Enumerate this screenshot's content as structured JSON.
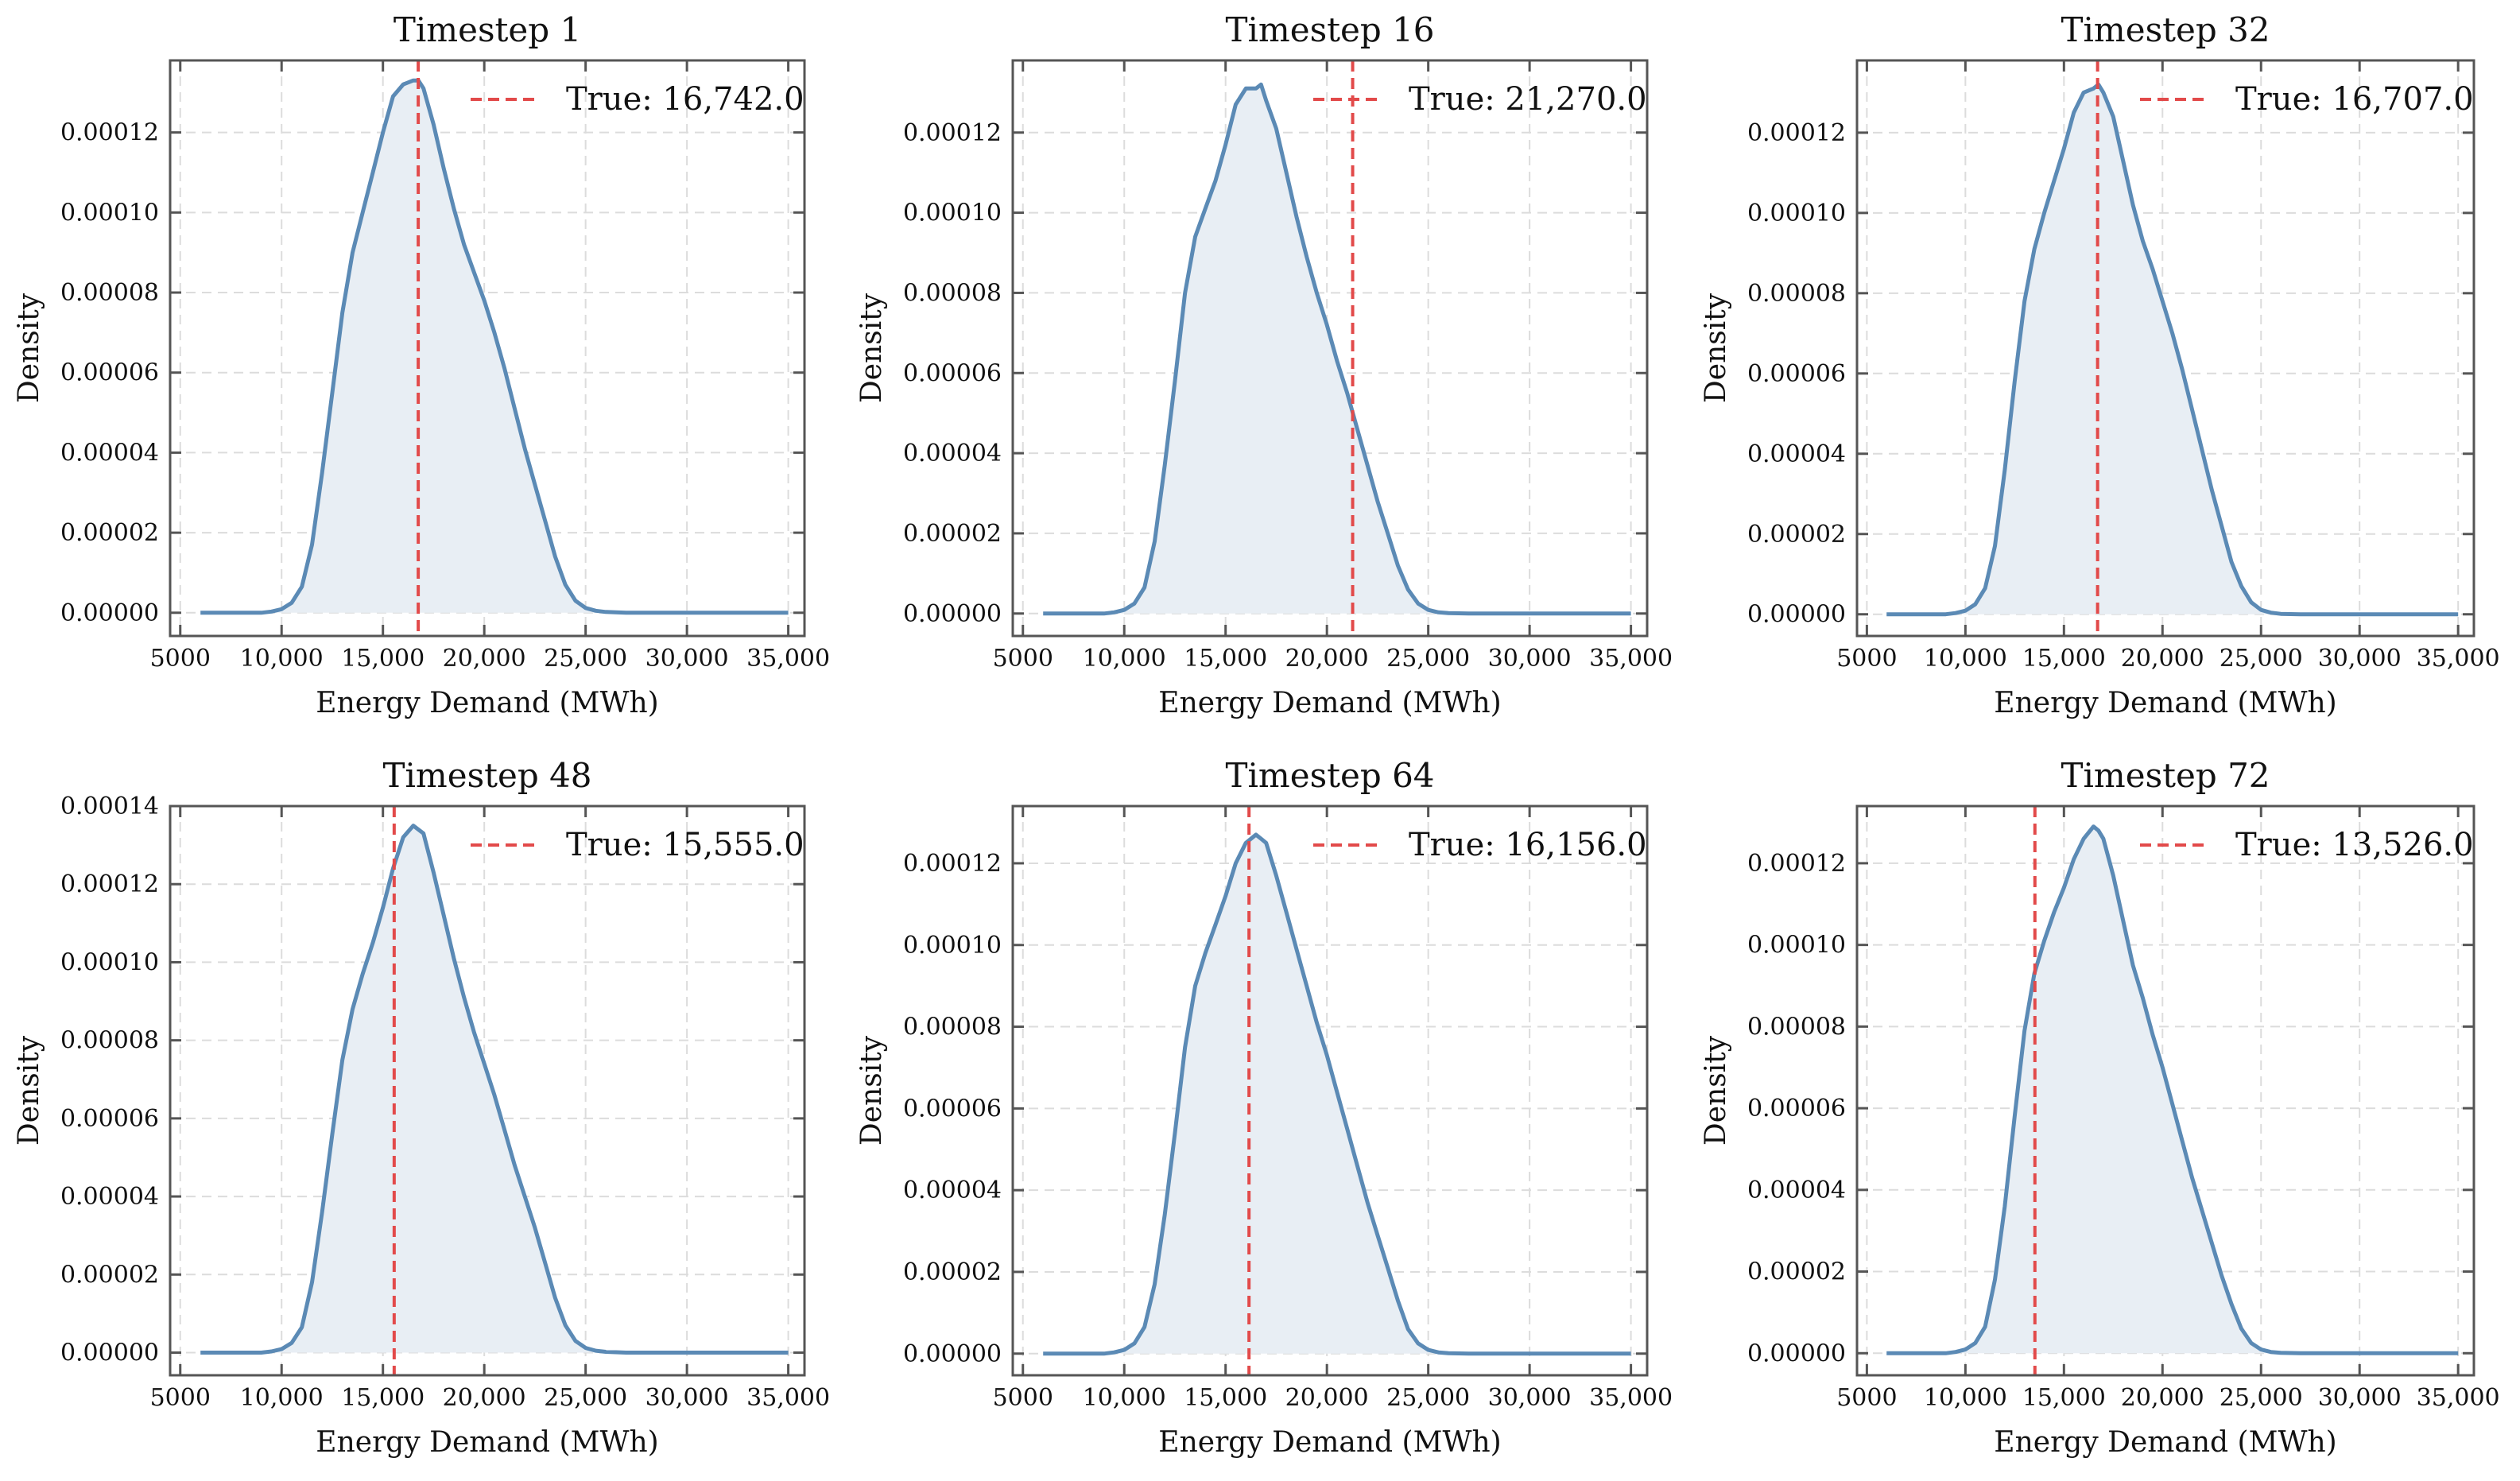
{
  "chart_data": [
    {
      "type": "area",
      "title": "Timestep 1",
      "xlabel": "Energy Demand (MWh)",
      "ylabel": "Density",
      "xlim": [
        4500,
        35800
      ],
      "ylim": [
        -5.8e-06,
        0.000138
      ],
      "xticks": [
        5000,
        10000,
        15000,
        20000,
        25000,
        30000,
        35000
      ],
      "xtick_labels": [
        "5000",
        "10,000",
        "15,000",
        "20,000",
        "25,000",
        "30,000",
        "35,000"
      ],
      "yticks": [
        0,
        2e-05,
        4e-05,
        6e-05,
        8e-05,
        0.0001,
        0.00012
      ],
      "ytick_labels": [
        "0.00000",
        "0.00002",
        "0.00004",
        "0.00006",
        "0.00008",
        "0.00010",
        "0.00012"
      ],
      "grid": true,
      "legend_position": "top-right",
      "true_value": 16742,
      "true_label": "True: 16,742.0",
      "x": [
        6000,
        9000,
        9500,
        10000,
        10500,
        11000,
        11500,
        12000,
        12500,
        13000,
        13500,
        14000,
        14500,
        15000,
        15500,
        16000,
        16500,
        16750,
        17000,
        17500,
        18000,
        18500,
        19000,
        19500,
        20000,
        20500,
        21000,
        21500,
        22000,
        22500,
        23000,
        23500,
        24000,
        24500,
        25000,
        25500,
        26000,
        27000,
        30000,
        35000
      ],
      "y": [
        0,
        0,
        3e-07,
        9e-07,
        2.5e-06,
        6.5e-06,
        1.7e-05,
        3.5e-05,
        5.5e-05,
        7.5e-05,
        9e-05,
        0.0001,
        0.00011,
        0.00012,
        0.000129,
        0.000132,
        0.000133,
        0.000133,
        0.000131,
        0.000122,
        0.000111,
        0.000101,
        9.2e-05,
        8.5e-05,
        7.8e-05,
        7e-05,
        6.1e-05,
        5.1e-05,
        4.1e-05,
        3.2e-05,
        2.3e-05,
        1.4e-05,
        7e-06,
        3e-06,
        1.2e-06,
        5e-07,
        2e-07,
        0,
        0,
        0
      ]
    },
    {
      "type": "area",
      "title": "Timestep 16",
      "xlabel": "Energy Demand (MWh)",
      "ylabel": "Density",
      "xlim": [
        4500,
        35800
      ],
      "ylim": [
        -5.6e-06,
        0.000138
      ],
      "xticks": [
        5000,
        10000,
        15000,
        20000,
        25000,
        30000,
        35000
      ],
      "xtick_labels": [
        "5000",
        "10,000",
        "15,000",
        "20,000",
        "25,000",
        "30,000",
        "35,000"
      ],
      "yticks": [
        0,
        2e-05,
        4e-05,
        6e-05,
        8e-05,
        0.0001,
        0.00012
      ],
      "ytick_labels": [
        "0.00000",
        "0.00002",
        "0.00004",
        "0.00006",
        "0.00008",
        "0.00010",
        "0.00012"
      ],
      "grid": true,
      "legend_position": "top-right",
      "true_value": 21270,
      "true_label": "True: 21,270.0",
      "x": [
        6000,
        9000,
        9500,
        10000,
        10500,
        11000,
        11500,
        12000,
        12500,
        13000,
        13500,
        14000,
        14500,
        15000,
        15500,
        16000,
        16500,
        16750,
        17000,
        17500,
        18000,
        18500,
        19000,
        19500,
        20000,
        20500,
        21000,
        21500,
        22000,
        22500,
        23000,
        23500,
        24000,
        24500,
        25000,
        25500,
        26000,
        27000,
        30000,
        35000
      ],
      "y": [
        0,
        0,
        3e-07,
        9e-07,
        2.5e-06,
        6.5e-06,
        1.8e-05,
        3.7e-05,
        5.8e-05,
        8e-05,
        9.4e-05,
        0.000101,
        0.000108,
        0.000117,
        0.000127,
        0.000131,
        0.000131,
        0.000132,
        0.000128,
        0.000121,
        0.00011,
        9.9e-05,
        8.9e-05,
        8e-05,
        7.2e-05,
        6.3e-05,
        5.5e-05,
        4.6e-05,
        3.7e-05,
        2.8e-05,
        2e-05,
        1.2e-05,
        6e-06,
        2.5e-06,
        9e-07,
        3e-07,
        1e-07,
        0,
        0,
        0
      ]
    },
    {
      "type": "area",
      "title": "Timestep 32",
      "xlabel": "Energy Demand (MWh)",
      "ylabel": "Density",
      "xlim": [
        4500,
        35800
      ],
      "ylim": [
        -5.4e-06,
        0.000138
      ],
      "xticks": [
        5000,
        10000,
        15000,
        20000,
        25000,
        30000,
        35000
      ],
      "xtick_labels": [
        "5000",
        "10,000",
        "15,000",
        "20,000",
        "25,000",
        "30,000",
        "35,000"
      ],
      "yticks": [
        0,
        2e-05,
        4e-05,
        6e-05,
        8e-05,
        0.0001,
        0.00012
      ],
      "ytick_labels": [
        "0.00000",
        "0.00002",
        "0.00004",
        "0.00006",
        "0.00008",
        "0.00010",
        "0.00012"
      ],
      "grid": true,
      "legend_position": "top-right",
      "true_value": 16707,
      "true_label": "True: 16,707.0",
      "x": [
        6000,
        9000,
        9500,
        10000,
        10500,
        11000,
        11500,
        12000,
        12500,
        13000,
        13500,
        14000,
        14500,
        15000,
        15500,
        16000,
        16500,
        16750,
        17000,
        17500,
        18000,
        18500,
        19000,
        19500,
        20000,
        20500,
        21000,
        21500,
        22000,
        22500,
        23000,
        23500,
        24000,
        24500,
        25000,
        25500,
        26000,
        27000,
        30000,
        35000
      ],
      "y": [
        0,
        0,
        3e-07,
        9e-07,
        2.5e-06,
        6.5e-06,
        1.7e-05,
        3.6e-05,
        5.8e-05,
        7.8e-05,
        9.1e-05,
        0.0001,
        0.000108,
        0.000116,
        0.000125,
        0.00013,
        0.000131,
        0.000132,
        0.00013,
        0.000124,
        0.000113,
        0.000102,
        9.3e-05,
        8.6e-05,
        7.8e-05,
        7e-05,
        6.1e-05,
        5.1e-05,
        4.1e-05,
        3.1e-05,
        2.2e-05,
        1.3e-05,
        7e-06,
        3e-06,
        1.1e-06,
        4e-07,
        1e-07,
        0,
        0,
        0
      ]
    },
    {
      "type": "area",
      "title": "Timestep 48",
      "xlabel": "Energy Demand (MWh)",
      "ylabel": "Density",
      "xlim": [
        4500,
        35800
      ],
      "ylim": [
        -5.8e-06,
        0.00014
      ],
      "xticks": [
        5000,
        10000,
        15000,
        20000,
        25000,
        30000,
        35000
      ],
      "xtick_labels": [
        "5000",
        "10,000",
        "15,000",
        "20,000",
        "25,000",
        "30,000",
        "35,000"
      ],
      "yticks": [
        0,
        2e-05,
        4e-05,
        6e-05,
        8e-05,
        0.0001,
        0.00012,
        0.00014
      ],
      "ytick_labels": [
        "0.00000",
        "0.00002",
        "0.00004",
        "0.00006",
        "0.00008",
        "0.00010",
        "0.00012",
        "0.00014"
      ],
      "grid": true,
      "legend_position": "top-right",
      "true_value": 15555,
      "true_label": "True: 15,555.0",
      "x": [
        6000,
        9000,
        9500,
        10000,
        10500,
        11000,
        11500,
        12000,
        12500,
        13000,
        13500,
        14000,
        14500,
        15000,
        15500,
        16000,
        16500,
        16750,
        17000,
        17500,
        18000,
        18500,
        19000,
        19500,
        20000,
        20500,
        21000,
        21500,
        22000,
        22500,
        23000,
        23500,
        24000,
        24500,
        25000,
        25500,
        26000,
        27000,
        30000,
        35000
      ],
      "y": [
        0,
        0,
        3e-07,
        9e-07,
        2.5e-06,
        6.5e-06,
        1.8e-05,
        3.6e-05,
        5.6e-05,
        7.5e-05,
        8.8e-05,
        9.7e-05,
        0.000105,
        0.000114,
        0.000124,
        0.000132,
        0.000135,
        0.000134,
        0.000133,
        0.000123,
        0.000112,
        0.000101,
        9.1e-05,
        8.2e-05,
        7.4e-05,
        6.6e-05,
        5.7e-05,
        4.8e-05,
        4e-05,
        3.2e-05,
        2.3e-05,
        1.4e-05,
        7e-06,
        3e-06,
        1.2e-06,
        5e-07,
        2e-07,
        0,
        0,
        0
      ]
    },
    {
      "type": "area",
      "title": "Timestep 64",
      "xlabel": "Energy Demand (MWh)",
      "ylabel": "Density",
      "xlim": [
        4500,
        35800
      ],
      "ylim": [
        -5.3e-06,
        0.000134
      ],
      "xticks": [
        5000,
        10000,
        15000,
        20000,
        25000,
        30000,
        35000
      ],
      "xtick_labels": [
        "5000",
        "10,000",
        "15,000",
        "20,000",
        "25,000",
        "30,000",
        "35,000"
      ],
      "yticks": [
        0,
        2e-05,
        4e-05,
        6e-05,
        8e-05,
        0.0001,
        0.00012
      ],
      "ytick_labels": [
        "0.00000",
        "0.00002",
        "0.00004",
        "0.00006",
        "0.00008",
        "0.00010",
        "0.00012"
      ],
      "grid": true,
      "legend_position": "top-right",
      "true_value": 16156,
      "true_label": "True: 16,156.0",
      "x": [
        6000,
        9000,
        9500,
        10000,
        10500,
        11000,
        11500,
        12000,
        12500,
        13000,
        13500,
        14000,
        14500,
        15000,
        15500,
        16000,
        16500,
        16750,
        17000,
        17500,
        18000,
        18500,
        19000,
        19500,
        20000,
        20500,
        21000,
        21500,
        22000,
        22500,
        23000,
        23500,
        24000,
        24500,
        25000,
        25500,
        26000,
        27000,
        30000,
        35000
      ],
      "y": [
        0,
        0,
        3e-07,
        9e-07,
        2.5e-06,
        6.5e-06,
        1.7e-05,
        3.4e-05,
        5.4e-05,
        7.5e-05,
        9e-05,
        9.8e-05,
        0.000105,
        0.000112,
        0.00012,
        0.000125,
        0.000127,
        0.000126,
        0.000125,
        0.000117,
        0.000108,
        9.9e-05,
        9e-05,
        8.1e-05,
        7.3e-05,
        6.4e-05,
        5.5e-05,
        4.6e-05,
        3.7e-05,
        2.9e-05,
        2.1e-05,
        1.3e-05,
        6e-06,
        2.5e-06,
        9e-07,
        3e-07,
        1e-07,
        0,
        0,
        0
      ]
    },
    {
      "type": "area",
      "title": "Timestep 72",
      "xlabel": "Energy Demand (MWh)",
      "ylabel": "Density",
      "xlim": [
        4500,
        35800
      ],
      "ylim": [
        -5.4e-06,
        0.000134
      ],
      "xticks": [
        5000,
        10000,
        15000,
        20000,
        25000,
        30000,
        35000
      ],
      "xtick_labels": [
        "5000",
        "10,000",
        "15,000",
        "20,000",
        "25,000",
        "30,000",
        "35,000"
      ],
      "yticks": [
        0,
        2e-05,
        4e-05,
        6e-05,
        8e-05,
        0.0001,
        0.00012
      ],
      "ytick_labels": [
        "0.00000",
        "0.00002",
        "0.00004",
        "0.00006",
        "0.00008",
        "0.00010",
        "0.00012"
      ],
      "grid": true,
      "legend_position": "top-right",
      "true_value": 13526,
      "true_label": "True: 13,526.0",
      "x": [
        6000,
        9000,
        9500,
        10000,
        10500,
        11000,
        11500,
        12000,
        12500,
        13000,
        13500,
        14000,
        14500,
        15000,
        15500,
        16000,
        16500,
        16750,
        17000,
        17500,
        18000,
        18500,
        19000,
        19500,
        20000,
        20500,
        21000,
        21500,
        22000,
        22500,
        23000,
        23500,
        24000,
        24500,
        25000,
        25500,
        26000,
        27000,
        30000,
        35000
      ],
      "y": [
        0,
        0,
        3e-07,
        9e-07,
        2.5e-06,
        6.5e-06,
        1.8e-05,
        3.6e-05,
        5.8e-05,
        7.9e-05,
        9.3e-05,
        0.000101,
        0.000108,
        0.000114,
        0.000121,
        0.000126,
        0.000129,
        0.000128,
        0.000126,
        0.000117,
        0.000106,
        9.5e-05,
        8.7e-05,
        7.8e-05,
        7e-05,
        6.1e-05,
        5.2e-05,
        4.3e-05,
        3.5e-05,
        2.7e-05,
        1.9e-05,
        1.2e-05,
        6e-06,
        2.5e-06,
        9e-07,
        3e-07,
        1e-07,
        0,
        0,
        0
      ]
    }
  ],
  "colors": {
    "curve": "#5b8ab5",
    "fill": "#e8eef4",
    "true_line": "#e24a4a",
    "grid": "#dcdcdc",
    "axes": "#555555",
    "text": "#111111"
  }
}
